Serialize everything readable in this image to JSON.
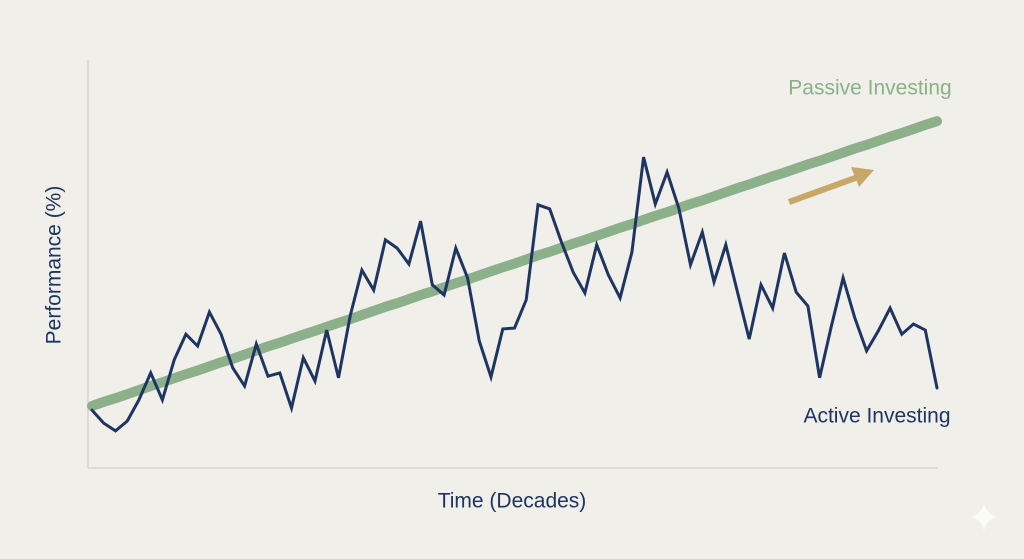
{
  "chart_data": {
    "type": "line",
    "xlabel": "Time (Decades)",
    "ylabel": "Performance (%)",
    "categories": [
      null,
      null,
      null,
      null,
      null,
      null,
      null,
      null,
      null,
      null,
      null,
      null,
      null,
      null,
      null,
      null,
      null,
      null,
      null,
      null,
      null,
      null,
      null,
      null,
      null,
      null,
      null,
      null,
      null,
      null,
      null,
      null,
      null,
      null,
      null,
      null,
      null,
      null,
      null,
      null,
      null,
      null,
      null,
      null,
      null,
      null,
      null,
      null,
      null,
      null,
      null,
      null,
      null,
      null,
      null,
      null,
      null,
      null,
      null,
      null,
      null,
      null,
      null,
      null,
      null,
      null,
      null,
      null,
      null,
      null,
      null,
      null,
      null
    ],
    "ylim": [
      0,
      100
    ],
    "series": [
      {
        "name": "Passive Investing",
        "color": "#8cb08a",
        "values": [
          15.2,
          16.2,
          17.1,
          18.1,
          19.1,
          20.1,
          21.0,
          22.0,
          23.0,
          23.9,
          24.9,
          25.9,
          26.8,
          27.8,
          28.8,
          29.8,
          30.7,
          31.7,
          32.7,
          33.6,
          34.6,
          35.6,
          36.5,
          37.5,
          38.5,
          39.5,
          40.4,
          41.4,
          42.4,
          43.3,
          44.3,
          45.3,
          46.2,
          47.2,
          48.2,
          49.2,
          50.1,
          51.1,
          52.1,
          53.0,
          54.0,
          55.0,
          55.9,
          56.9,
          57.9,
          58.9,
          59.8,
          60.8,
          61.8,
          62.7,
          63.7,
          64.7,
          65.6,
          66.6,
          67.6,
          68.6,
          69.5,
          70.5,
          71.5,
          72.4,
          73.4,
          74.4,
          75.3,
          76.3,
          77.3,
          78.3,
          79.2,
          80.2,
          81.2,
          82.1,
          83.1,
          84.1,
          85.0
        ]
      },
      {
        "name": "Active Investing",
        "color": "#1e3461",
        "values": [
          14.2,
          11.0,
          9.1,
          11.5,
          16.7,
          23.3,
          16.7,
          26.5,
          32.8,
          29.9,
          38.2,
          32.8,
          24.5,
          20.1,
          30.4,
          22.5,
          23.3,
          14.7,
          27.0,
          21.3,
          33.8,
          22.1,
          37.3,
          48.5,
          43.6,
          55.9,
          53.9,
          50.0,
          60.5,
          44.9,
          42.4,
          53.9,
          46.6,
          31.1,
          22.3,
          34.1,
          34.3,
          41.2,
          64.5,
          63.5,
          55.4,
          48.0,
          42.9,
          54.7,
          47.3,
          41.7,
          52.9,
          76.2,
          64.7,
          72.5,
          63.7,
          49.8,
          57.8,
          45.6,
          54.7,
          43.1,
          31.6,
          44.9,
          39.2,
          52.7,
          43.1,
          39.7,
          22.1,
          34.8,
          46.6,
          36.8,
          28.7,
          33.6,
          39.2,
          32.8,
          35.3,
          33.8,
          19.6
        ]
      }
    ]
  }
}
